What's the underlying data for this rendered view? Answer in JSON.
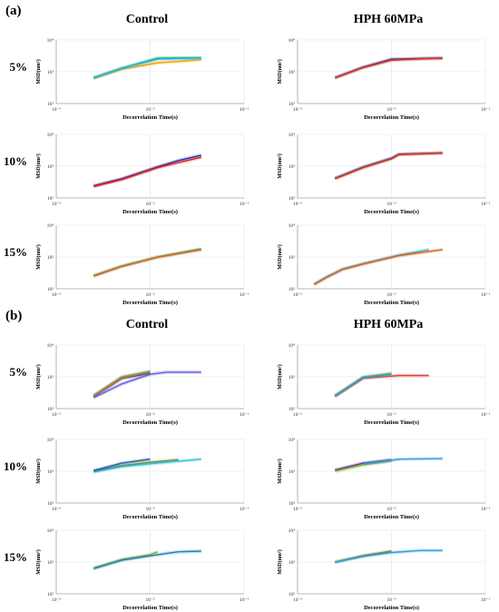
{
  "panels": [
    {
      "label": "(a)",
      "columns": [
        "Control",
        "HPH 60MPa"
      ],
      "rows": [
        "5%",
        "10%",
        "15%"
      ]
    },
    {
      "label": "(b)",
      "columns": [
        "Control",
        "HPH 60MPa"
      ],
      "rows": [
        "5%",
        "10%",
        "15%"
      ]
    }
  ],
  "axis": {
    "xlabel": "Decorrelation Time(s)",
    "ylabel": "MSD(nm²)",
    "xticks": [
      "10⁻³",
      "10⁻²",
      "10⁻¹"
    ],
    "yticks": [
      "10²",
      "10³",
      "10⁴"
    ]
  },
  "chart_data": [
    {
      "type": "line",
      "panel": "a",
      "column": "Control",
      "row": "5%",
      "xscale": "log",
      "yscale": "log",
      "xlim": [
        0.001,
        0.1
      ],
      "ylim": [
        100,
        10000
      ],
      "series": [
        {
          "color": "#f0a000",
          "x": [
            0.0025,
            0.005,
            0.012,
            0.02,
            0.035
          ],
          "y": [
            620,
            1200,
            1900,
            2100,
            2400
          ]
        },
        {
          "color": "#30c060",
          "x": [
            0.0025,
            0.005,
            0.012,
            0.02,
            0.035
          ],
          "y": [
            650,
            1300,
            2700,
            2750,
            2750
          ]
        },
        {
          "color": "#30b0e0",
          "x": [
            0.0025,
            0.005,
            0.012,
            0.02,
            0.035
          ],
          "y": [
            640,
            1280,
            2500,
            2600,
            2700
          ]
        }
      ]
    },
    {
      "type": "line",
      "panel": "a",
      "column": "HPH 60MPa",
      "row": "5%",
      "xscale": "log",
      "yscale": "log",
      "xlim": [
        0.001,
        0.1
      ],
      "ylim": [
        100,
        10000
      ],
      "series": [
        {
          "color": "#2050c0",
          "x": [
            0.0025,
            0.005,
            0.01,
            0.02,
            0.035
          ],
          "y": [
            650,
            1400,
            2500,
            2600,
            2700
          ]
        },
        {
          "color": "#e03010",
          "x": [
            0.0025,
            0.005,
            0.01,
            0.02,
            0.035
          ],
          "y": [
            640,
            1350,
            2300,
            2550,
            2650
          ]
        }
      ]
    },
    {
      "type": "line",
      "panel": "a",
      "column": "Control",
      "row": "10%",
      "xscale": "log",
      "yscale": "log",
      "xlim": [
        0.001,
        0.1
      ],
      "ylim": [
        100,
        10000
      ],
      "series": [
        {
          "color": "#1030c0",
          "x": [
            0.0025,
            0.005,
            0.012,
            0.02,
            0.035
          ],
          "y": [
            240,
            400,
            950,
            1500,
            2200
          ]
        },
        {
          "color": "#e02010",
          "x": [
            0.0025,
            0.005,
            0.012,
            0.02,
            0.035
          ],
          "y": [
            230,
            380,
            900,
            1300,
            1900
          ]
        }
      ]
    },
    {
      "type": "line",
      "panel": "a",
      "column": "HPH 60MPa",
      "row": "10%",
      "xscale": "log",
      "yscale": "log",
      "xlim": [
        0.001,
        0.1
      ],
      "ylim": [
        100,
        10000
      ],
      "series": [
        {
          "color": "#2070d0",
          "x": [
            0.0025,
            0.005,
            0.01,
            0.012,
            0.035
          ],
          "y": [
            420,
            950,
            1800,
            2400,
            2600
          ]
        },
        {
          "color": "#e03010",
          "x": [
            0.0025,
            0.005,
            0.01,
            0.012,
            0.035
          ],
          "y": [
            400,
            900,
            1700,
            2300,
            2600
          ]
        }
      ]
    },
    {
      "type": "line",
      "panel": "a",
      "column": "Control",
      "row": "15%",
      "xscale": "log",
      "yscale": "log",
      "xlim": [
        0.001,
        0.1
      ],
      "ylim": [
        100,
        10000
      ],
      "series": [
        {
          "color": "#30c060",
          "x": [
            0.0025,
            0.005,
            0.012,
            0.035
          ],
          "y": [
            260,
            520,
            1000,
            1800
          ]
        },
        {
          "color": "#e06020",
          "x": [
            0.0025,
            0.005,
            0.012,
            0.035
          ],
          "y": [
            250,
            500,
            980,
            1700
          ]
        }
      ]
    },
    {
      "type": "line",
      "panel": "a",
      "column": "HPH 60MPa",
      "row": "15%",
      "xscale": "log",
      "yscale": "log",
      "xlim": [
        0.001,
        0.1
      ],
      "ylim": [
        100,
        10000
      ],
      "series": [
        {
          "color": "#30c0d0",
          "x": [
            0.0015,
            0.002,
            0.003,
            0.005,
            0.012,
            0.025
          ],
          "y": [
            140,
            230,
            420,
            620,
            1150,
            1700
          ]
        },
        {
          "color": "#e06020",
          "x": [
            0.0015,
            0.002,
            0.003,
            0.005,
            0.012,
            0.035
          ],
          "y": [
            135,
            220,
            400,
            600,
            1100,
            1700
          ]
        }
      ]
    },
    {
      "type": "line",
      "panel": "b",
      "column": "Control",
      "row": "5%",
      "xscale": "log",
      "yscale": "log",
      "xlim": [
        0.001,
        0.1
      ],
      "ylim": [
        100,
        10000
      ],
      "series": [
        {
          "color": "#203080",
          "x": [
            0.0025,
            0.005,
            0.01
          ],
          "y": [
            240,
            900,
            1300
          ]
        },
        {
          "color": "#20c0a0",
          "x": [
            0.0025,
            0.005,
            0.01
          ],
          "y": [
            260,
            1000,
            1500
          ]
        },
        {
          "color": "#e07020",
          "x": [
            0.0025,
            0.005,
            0.01
          ],
          "y": [
            250,
            950,
            1400
          ]
        },
        {
          "color": "#6060e0",
          "x": [
            0.0025,
            0.005,
            0.01,
            0.015,
            0.035
          ],
          "y": [
            220,
            600,
            1200,
            1400,
            1400
          ]
        }
      ]
    },
    {
      "type": "line",
      "panel": "b",
      "column": "HPH 60MPa",
      "row": "5%",
      "xscale": "log",
      "yscale": "log",
      "xlim": [
        0.001,
        0.1
      ],
      "ylim": [
        100,
        10000
      ],
      "series": [
        {
          "color": "#90c030",
          "x": [
            0.0025,
            0.005,
            0.01
          ],
          "y": [
            260,
            1000,
            1300
          ]
        },
        {
          "color": "#e04030",
          "x": [
            0.0025,
            0.005,
            0.012,
            0.025
          ],
          "y": [
            240,
            900,
            1100,
            1100
          ]
        },
        {
          "color": "#20a0e0",
          "x": [
            0.0025,
            0.005,
            0.01
          ],
          "y": [
            250,
            950,
            1200
          ]
        }
      ]
    },
    {
      "type": "line",
      "panel": "b",
      "column": "Control",
      "row": "10%",
      "xscale": "log",
      "yscale": "log",
      "xlim": [
        0.001,
        0.1
      ],
      "ylim": [
        100,
        10000
      ],
      "series": [
        {
          "color": "#708020",
          "x": [
            0.0025,
            0.005,
            0.01,
            0.02
          ],
          "y": [
            1000,
            1500,
            1900,
            2300
          ]
        },
        {
          "color": "#30c0e0",
          "x": [
            0.0025,
            0.005,
            0.012,
            0.035
          ],
          "y": [
            950,
            1400,
            1800,
            2400
          ]
        },
        {
          "color": "#2060a0",
          "x": [
            0.0025,
            0.005,
            0.01
          ],
          "y": [
            1050,
            1800,
            2400
          ]
        }
      ]
    },
    {
      "type": "line",
      "panel": "b",
      "column": "HPH 60MPa",
      "row": "10%",
      "xscale": "log",
      "yscale": "log",
      "xlim": [
        0.001,
        0.1
      ],
      "ylim": [
        100,
        10000
      ],
      "series": [
        {
          "color": "#6020a0",
          "x": [
            0.0025,
            0.005,
            0.01
          ],
          "y": [
            1100,
            1800,
            2300
          ]
        },
        {
          "color": "#80b020",
          "x": [
            0.0025,
            0.005,
            0.01
          ],
          "y": [
            1000,
            1600,
            2100
          ]
        },
        {
          "color": "#30a0e0",
          "x": [
            0.005,
            0.01,
            0.012,
            0.035
          ],
          "y": [
            1700,
            2200,
            2400,
            2500
          ]
        }
      ]
    },
    {
      "type": "line",
      "panel": "b",
      "column": "Control",
      "row": "15%",
      "xscale": "log",
      "yscale": "log",
      "xlim": [
        0.001,
        0.1
      ],
      "ylim": [
        100,
        10000
      ],
      "series": [
        {
          "color": "#90b020",
          "x": [
            0.0025,
            0.005,
            0.01,
            0.012
          ],
          "y": [
            650,
            1200,
            1700,
            2100
          ]
        },
        {
          "color": "#2080c0",
          "x": [
            0.0025,
            0.005,
            0.012,
            0.02,
            0.035
          ],
          "y": [
            620,
            1150,
            1700,
            2100,
            2200
          ]
        }
      ]
    },
    {
      "type": "line",
      "panel": "b",
      "column": "HPH 60MPa",
      "row": "15%",
      "xscale": "log",
      "yscale": "log",
      "xlim": [
        0.001,
        0.1
      ],
      "ylim": [
        100,
        10000
      ],
      "series": [
        {
          "color": "#708020",
          "x": [
            0.0025,
            0.005,
            0.01
          ],
          "y": [
            1000,
            1600,
            2200
          ]
        },
        {
          "color": "#30a0e0",
          "x": [
            0.0025,
            0.005,
            0.01,
            0.02,
            0.035
          ],
          "y": [
            980,
            1500,
            2000,
            2300,
            2300
          ]
        }
      ]
    }
  ]
}
